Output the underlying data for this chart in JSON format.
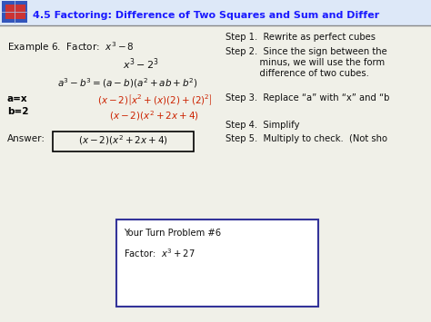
{
  "title": "4.5 Factoring: Difference of Two Squares and Sum and Differ",
  "title_color": "#1a1aff",
  "bg_color": "#f0f0e8",
  "red_color": "#cc2200",
  "black_color": "#111111",
  "bold_color": "#000000",
  "right_step1": "Step 1.  Rewrite as perfect cubes",
  "right_step2a": "Step 2.  Since the sign between the",
  "right_step2b": "            minus, we will use the form",
  "right_step2c": "            difference of two cubes.",
  "right_step3": "Step 3.  Replace “a” with “x” and “b",
  "right_step4": "Step 4.  Simplify",
  "right_step5": "Step 5.  Multiply to check.  (Not sho",
  "your_turn": "Your Turn Problem #6",
  "your_turn_factor": "Factor:  $x^3 + 27$"
}
